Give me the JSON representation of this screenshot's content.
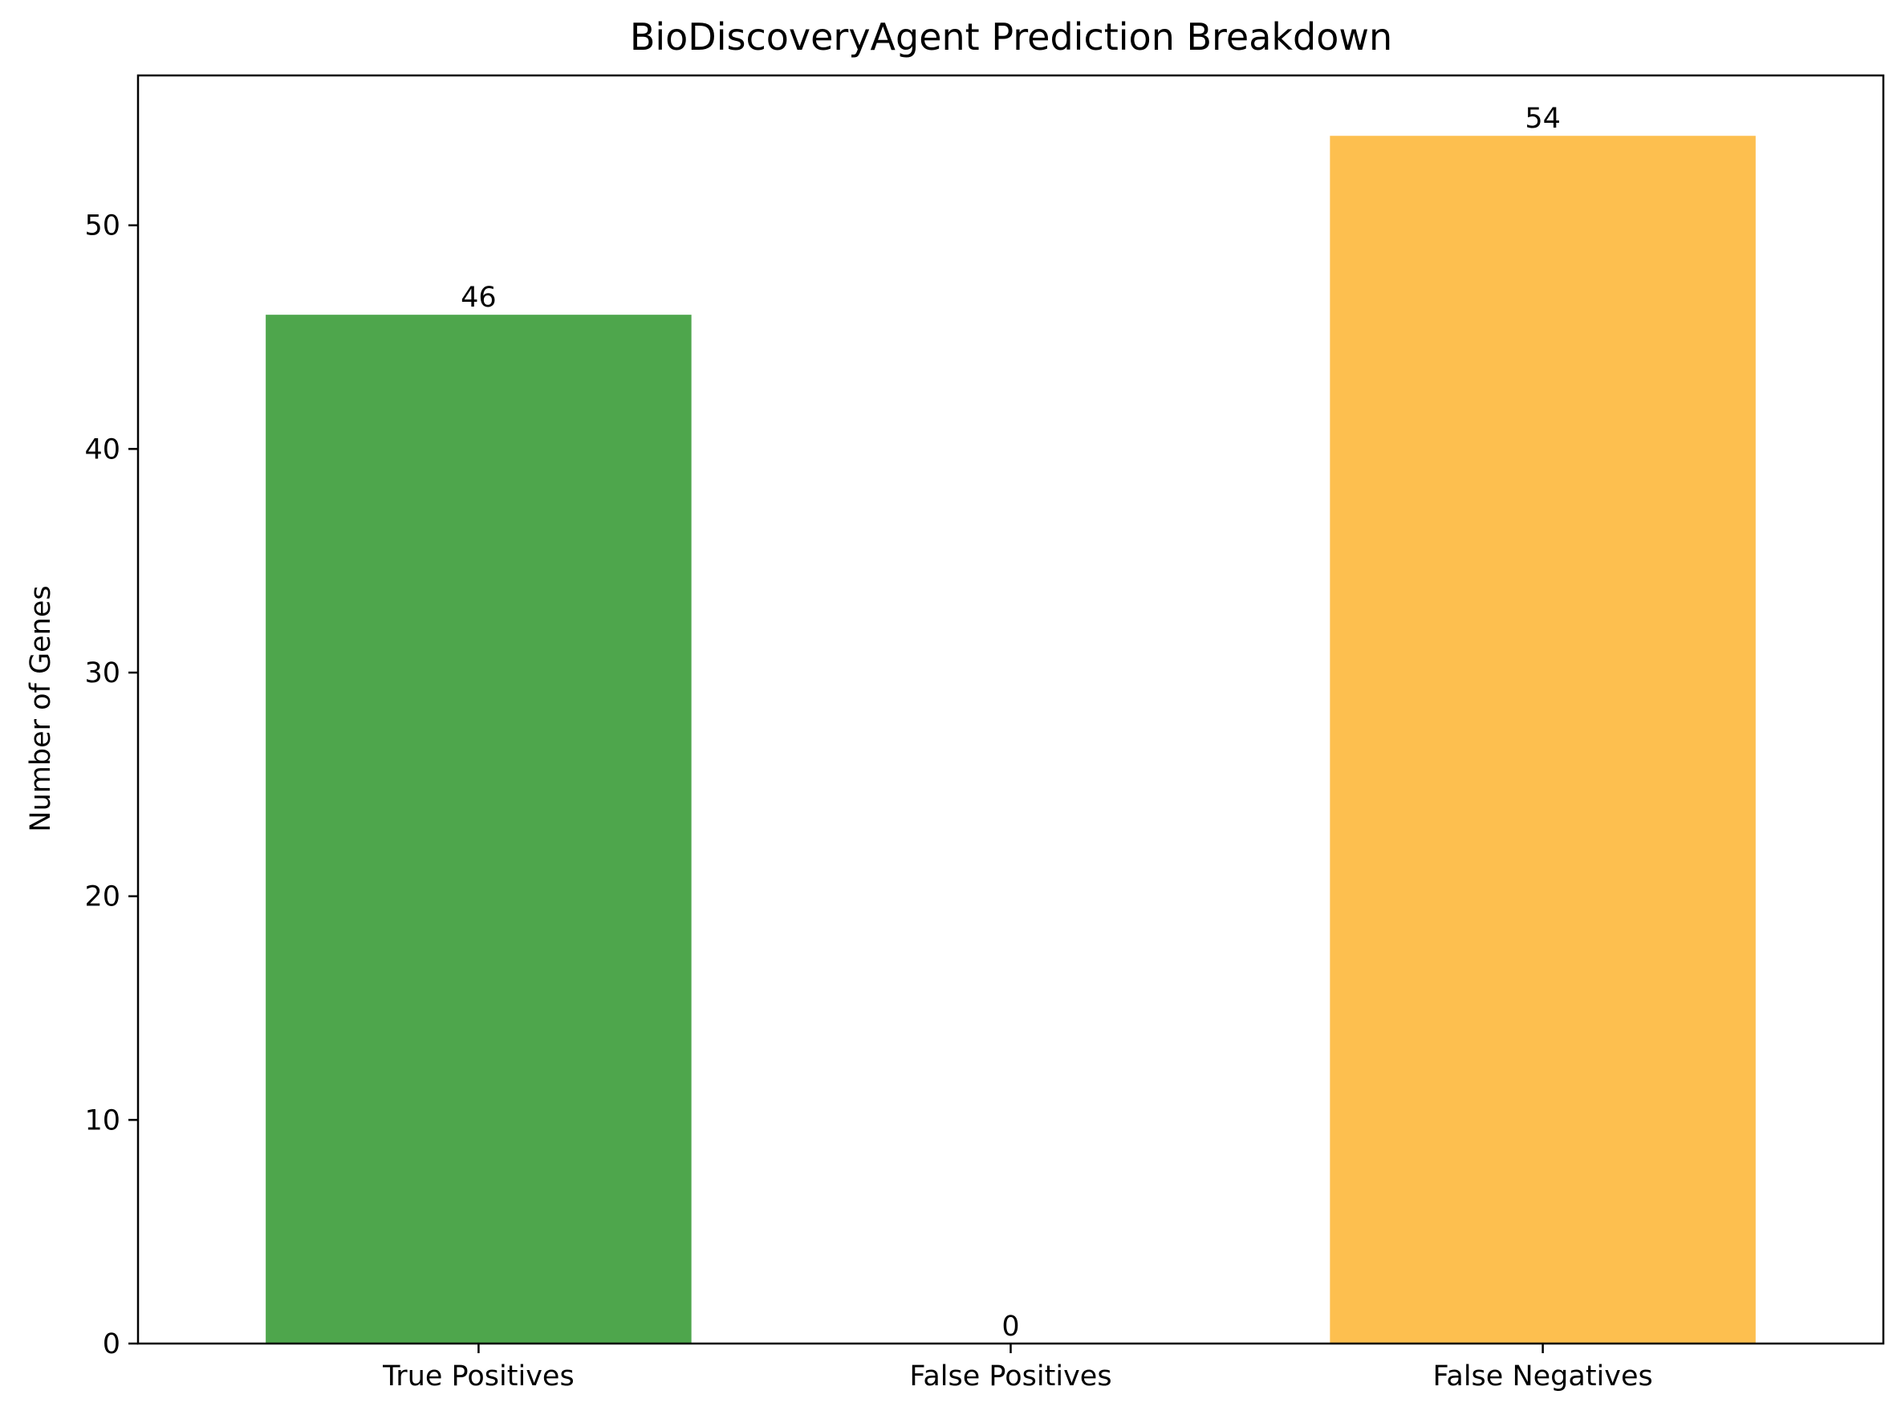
{
  "chart_data": {
    "type": "bar",
    "title": "BioDiscoveryAgent Prediction Breakdown",
    "xlabel": "",
    "ylabel": "Number of Genes",
    "categories": [
      "True Positives",
      "False Positives",
      "False Negatives"
    ],
    "values": [
      46,
      0,
      54
    ],
    "value_labels": [
      "46",
      "0",
      "54"
    ],
    "colors": [
      "#4ea64c",
      "#c9302c",
      "#fdbf4f"
    ],
    "ylim": [
      0,
      56.7
    ],
    "yticks": [
      0,
      10,
      20,
      30,
      40,
      50
    ],
    "grid": false,
    "legend": "none"
  }
}
